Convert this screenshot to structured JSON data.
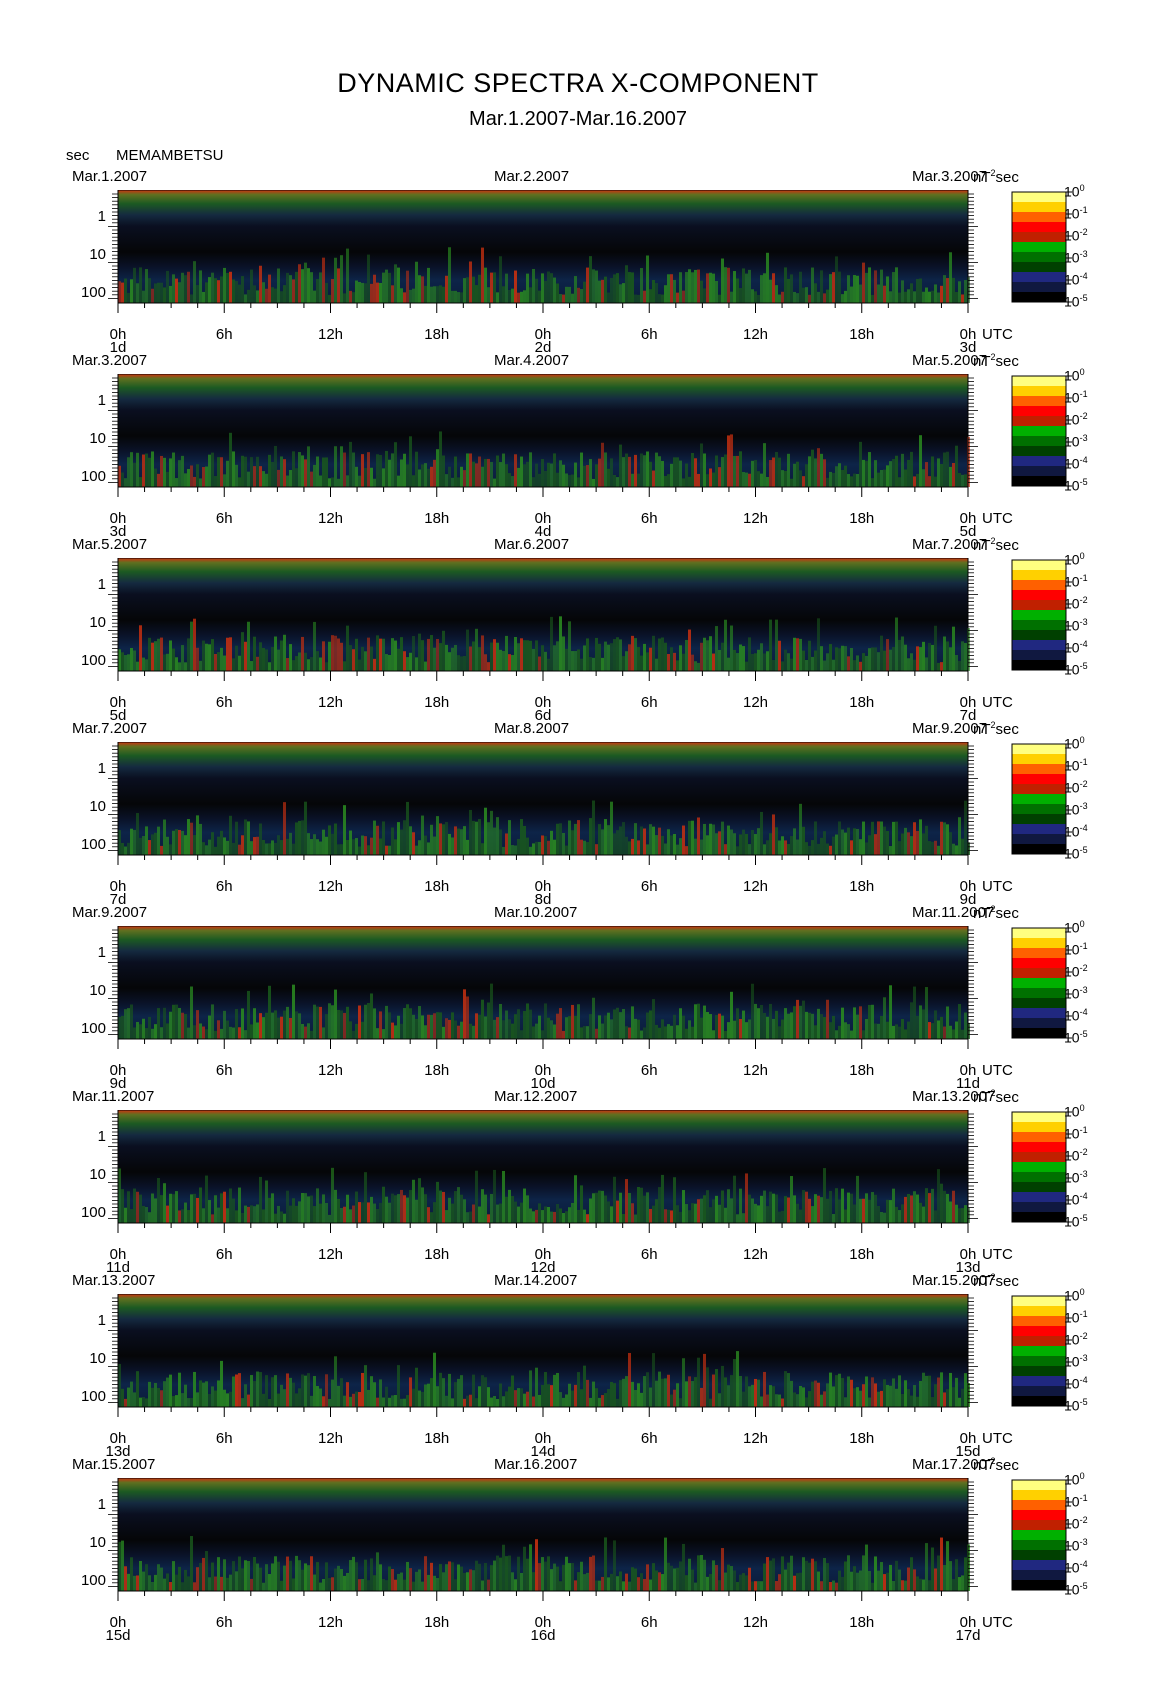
{
  "header": {
    "title": "DYNAMIC SPECTRA X-COMPONENT",
    "subtitle": "Mar.1.2007-Mar.16.2007",
    "y_unit": "sec",
    "station": "MEMAMBETSU"
  },
  "colorbar": {
    "unit": "nT",
    "unit_sup": "2",
    "unit_suffix": "sec",
    "labels": [
      {
        "base": "10",
        "exp": "0"
      },
      {
        "base": "10",
        "exp": "-1"
      },
      {
        "base": "10",
        "exp": "-2"
      },
      {
        "base": "10",
        "exp": "-3"
      },
      {
        "base": "10",
        "exp": "-4"
      },
      {
        "base": "10",
        "exp": "-5"
      }
    ],
    "colors": [
      "#ffff80",
      "#ffd000",
      "#ff6000",
      "#ff0000",
      "#c02000",
      "#00b000",
      "#007000",
      "#004000",
      "#202880",
      "#101840",
      "#000000"
    ]
  },
  "axes": {
    "y_ticks": [
      "1",
      "10",
      "100"
    ],
    "x_ticks": [
      "0h",
      "6h",
      "12h",
      "18h",
      "0h",
      "6h",
      "12h",
      "18h",
      "0h"
    ],
    "time_zone": "UTC"
  },
  "chart_data": {
    "type": "heatmap",
    "x_unit": "hours (UTC)",
    "y_unit": "period (sec)",
    "y_scale": "log",
    "panels": [
      {
        "date_left": "Mar.1.2007",
        "date_mid": "Mar.2.2007",
        "date_right": "Mar.3.2007",
        "day_start": "1d",
        "day_mid": "2d",
        "day_end": "3d"
      },
      {
        "date_left": "Mar.3.2007",
        "date_mid": "Mar.4.2007",
        "date_right": "Mar.5.2007",
        "day_start": "3d",
        "day_mid": "4d",
        "day_end": "5d"
      },
      {
        "date_left": "Mar.5.2007",
        "date_mid": "Mar.6.2007",
        "date_right": "Mar.7.2007",
        "day_start": "5d",
        "day_mid": "6d",
        "day_end": "7d"
      },
      {
        "date_left": "Mar.7.2007",
        "date_mid": "Mar.8.2007",
        "date_right": "Mar.9.2007",
        "day_start": "7d",
        "day_mid": "8d",
        "day_end": "9d"
      },
      {
        "date_left": "Mar.9.2007",
        "date_mid": "Mar.10.2007",
        "date_right": "Mar.11.2007",
        "day_start": "9d",
        "day_mid": "10d",
        "day_end": "11d"
      },
      {
        "date_left": "Mar.11.2007",
        "date_mid": "Mar.12.2007",
        "date_right": "Mar.13.2007",
        "day_start": "11d",
        "day_mid": "12d",
        "day_end": "13d"
      },
      {
        "date_left": "Mar.13.2007",
        "date_mid": "Mar.14.2007",
        "date_right": "Mar.15.2007",
        "day_start": "13d",
        "day_mid": "14d",
        "day_end": "15d"
      },
      {
        "date_left": "Mar.15.2007",
        "date_mid": "Mar.16.2007",
        "date_right": "Mar.17.2007",
        "day_start": "15d",
        "day_mid": "16d",
        "day_end": "17d"
      }
    ]
  }
}
